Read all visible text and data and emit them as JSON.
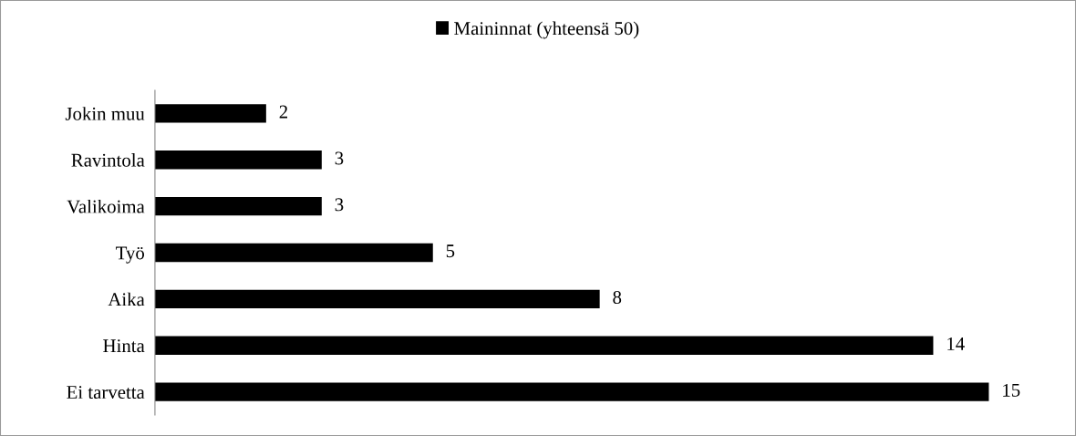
{
  "chart_data": {
    "type": "bar",
    "orientation": "horizontal",
    "categories": [
      "Jokin muu",
      "Ravintola",
      "Valikoima",
      "Työ",
      "Aika",
      "Hinta",
      "Ei tarvetta"
    ],
    "series": [
      {
        "name": "Maininnat (yhteensä 50)",
        "color": "#000000",
        "values": [
          2,
          3,
          3,
          5,
          8,
          14,
          15
        ]
      }
    ],
    "data_labels": true,
    "legend": "top",
    "grid": false
  }
}
